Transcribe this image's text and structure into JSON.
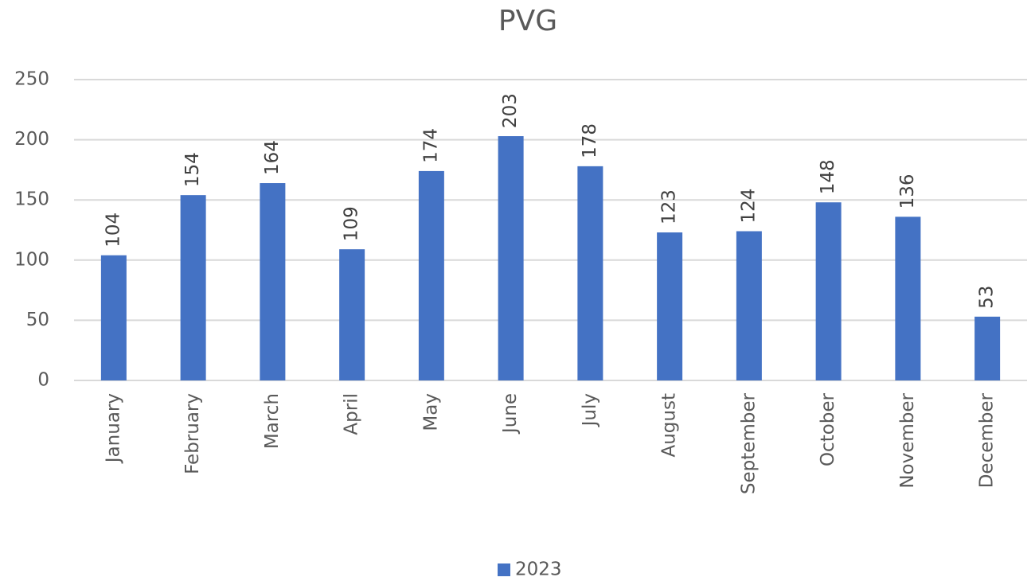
{
  "chart_data": {
    "type": "bar",
    "title": "PVG",
    "categories": [
      "January",
      "February",
      "March",
      "April",
      "May",
      "June",
      "July",
      "August",
      "September",
      "October",
      "November",
      "December"
    ],
    "series": [
      {
        "name": "2023",
        "color": "#4472c4",
        "values": [
          104,
          154,
          164,
          109,
          174,
          203,
          178,
          123,
          124,
          148,
          136,
          53
        ]
      }
    ],
    "ylim": [
      0,
      250
    ],
    "yticks": [
      0,
      50,
      100,
      150,
      200,
      250
    ],
    "grid": true,
    "data_labels": true,
    "legend": "bottom"
  }
}
